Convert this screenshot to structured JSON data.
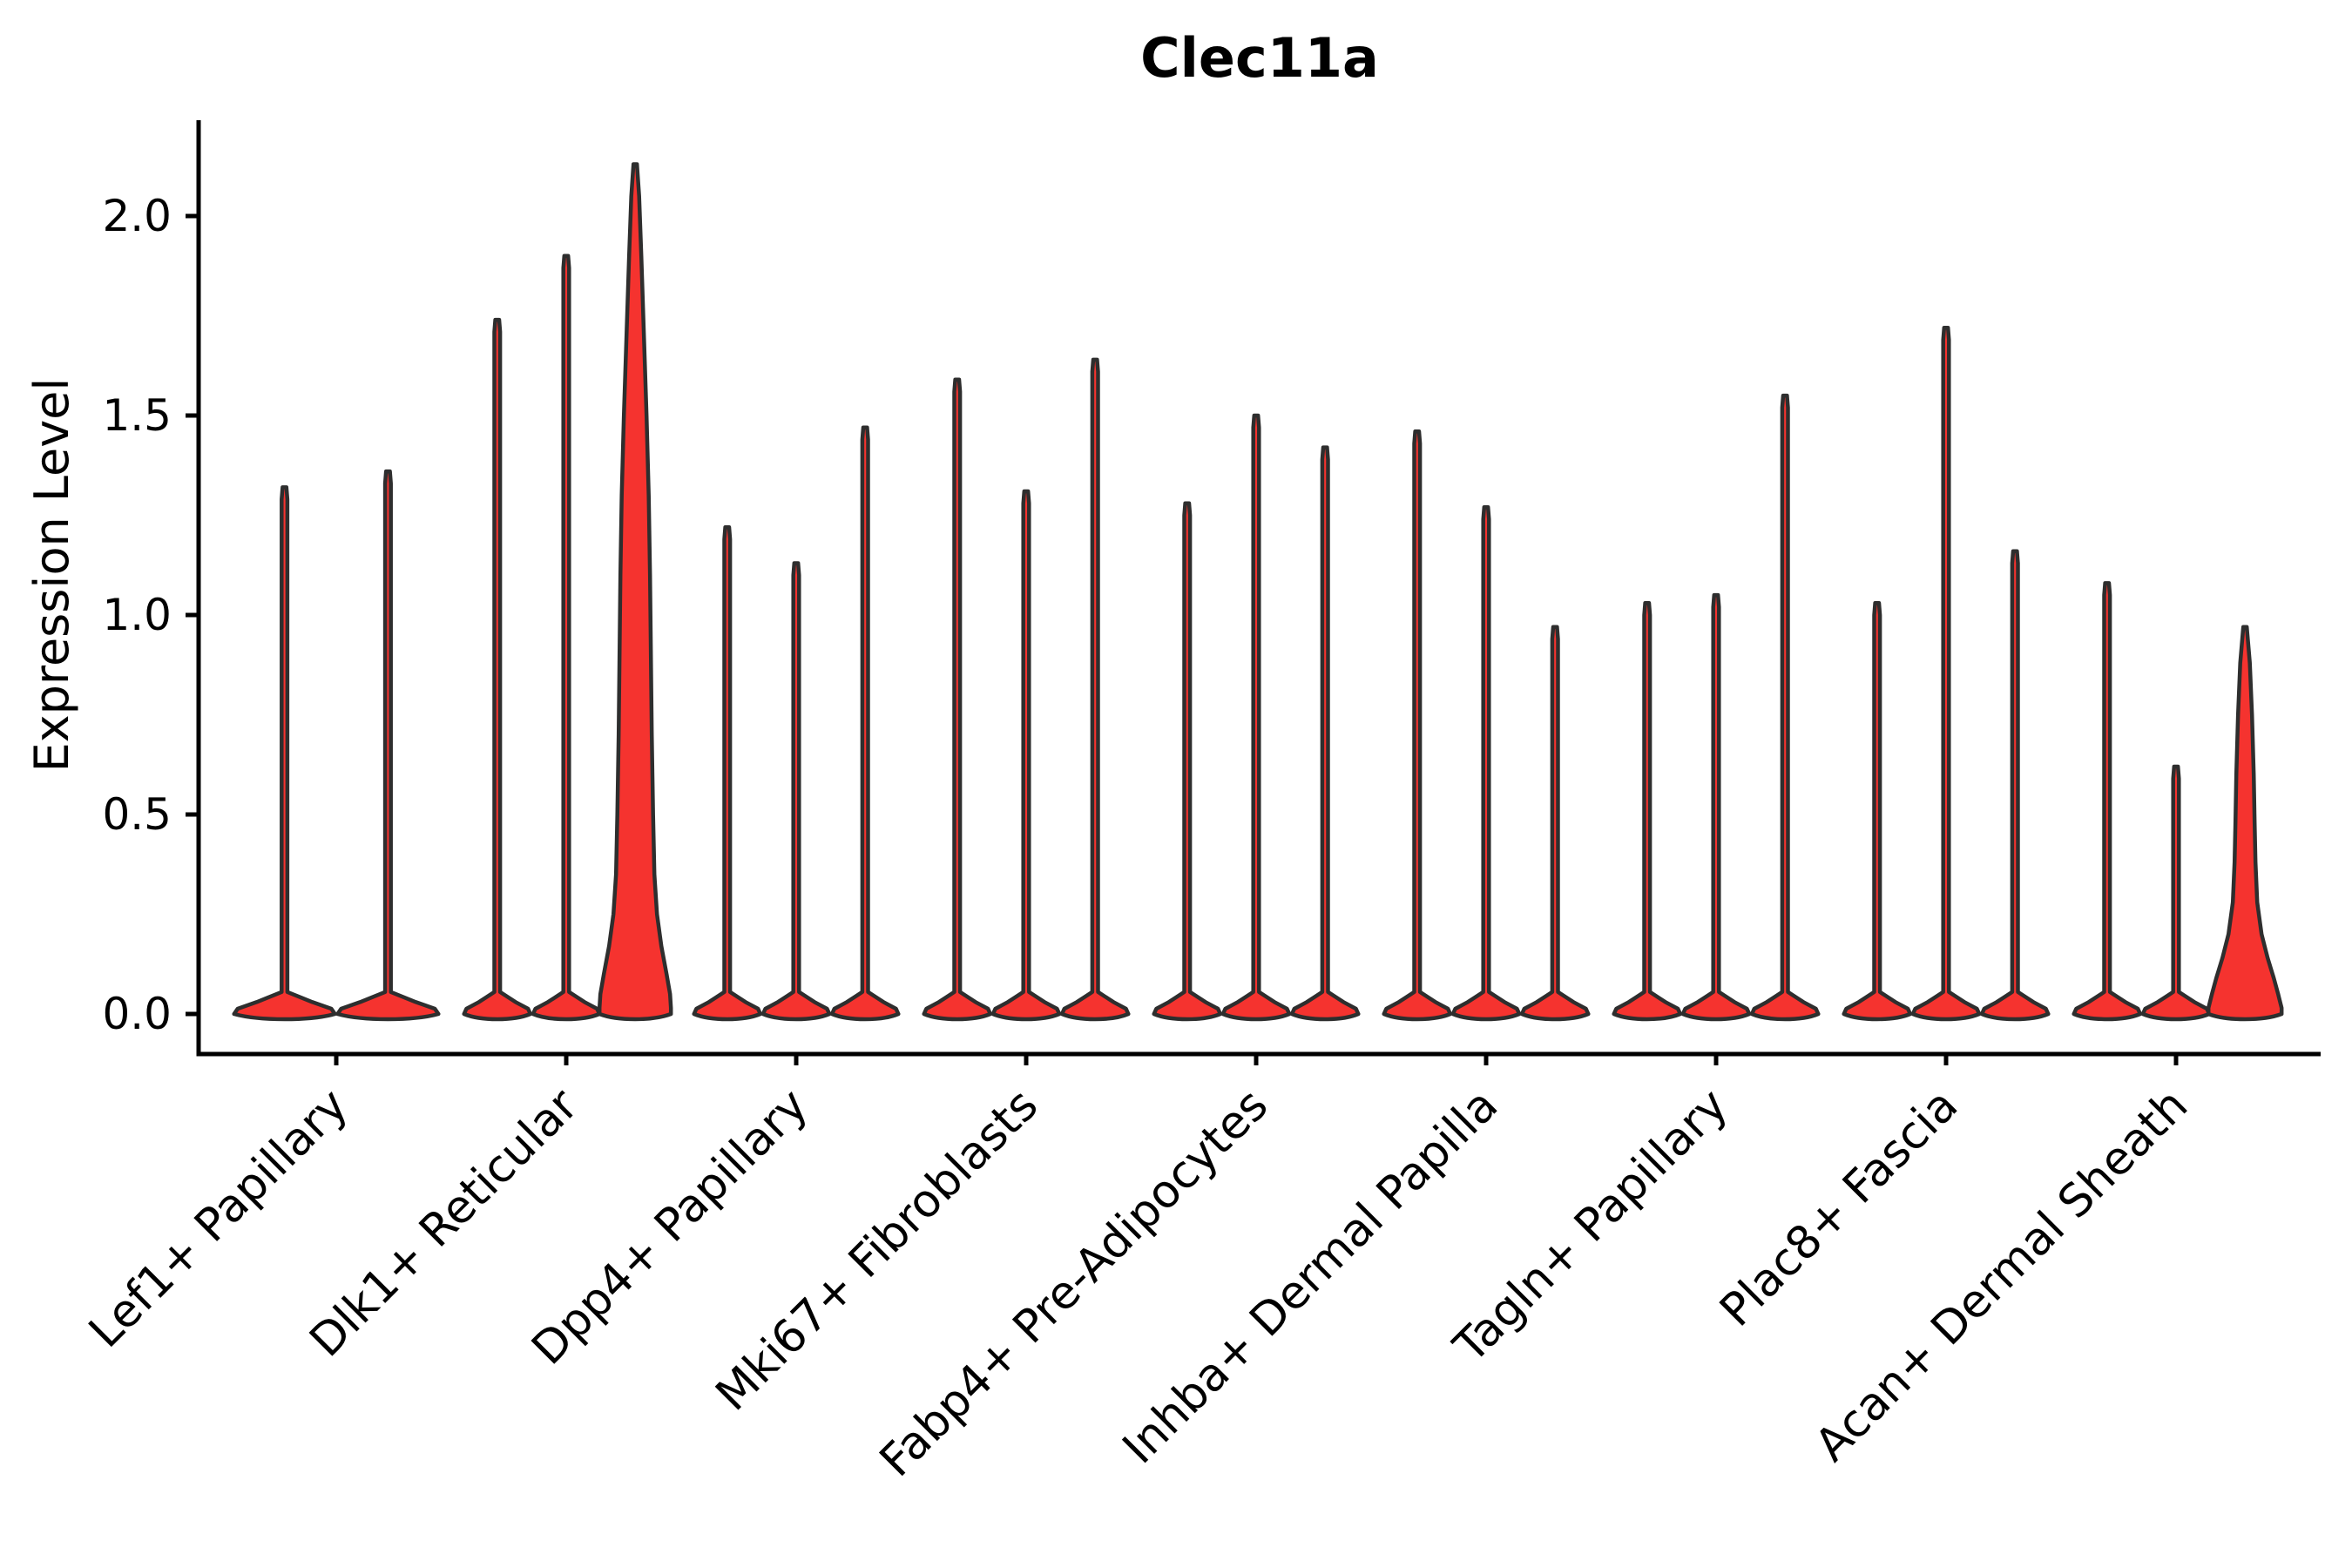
{
  "title": "Clec11a",
  "axes": {
    "ylabel": "Expression Level",
    "ytick_labels": [
      "2.0",
      "1.5",
      "1.0",
      "0.5",
      "0.0"
    ]
  },
  "colors": {
    "violin_fill": "#f5332f",
    "violin_stroke": "#2e2e2e",
    "axis": "#000000",
    "text": "#000000"
  },
  "chart_data": {
    "type": "violin",
    "title": "Clec11a",
    "xlabel": "",
    "ylabel": "Expression Level",
    "ylim": [
      -0.1,
      2.33
    ],
    "yticks": [
      2.0,
      1.5,
      1.0,
      0.5,
      0.0
    ],
    "grid": false,
    "legend": "none",
    "categories": [
      "Lef1+ Papillary",
      "Dlk1+ Reticular",
      "Dpp4+ Papillary",
      "Mki67+ Fibroblasts",
      "Fabp4+ Pre-Adipocytes",
      "Inhba+ Dermal Papilla",
      "Tagln+ Papillary",
      "Plac8+ Fascia",
      "Acan+ Dermal Sheath"
    ],
    "groups": [
      {
        "category": "Lef1+ Papillary",
        "violins": [
          {
            "max": 1.32
          },
          {
            "max": 1.36
          }
        ]
      },
      {
        "category": "Dlk1+ Reticular",
        "violins": [
          {
            "max": 1.74
          },
          {
            "max": 1.9
          },
          {
            "max": 2.13,
            "highlight": true,
            "profile": [
              [
                2.13,
                2
              ],
              [
                2.05,
                4.5
              ],
              [
                1.9,
                7
              ],
              [
                1.7,
                10
              ],
              [
                1.5,
                13
              ],
              [
                1.3,
                15.5
              ],
              [
                1.1,
                17
              ],
              [
                0.9,
                18
              ],
              [
                0.7,
                19
              ],
              [
                0.5,
                20.5
              ],
              [
                0.35,
                22
              ],
              [
                0.25,
                25
              ],
              [
                0.17,
                30
              ],
              [
                0.1,
                36
              ],
              [
                0.05,
                40
              ],
              [
                0.015,
                41
              ],
              [
                0,
                41
              ]
            ]
          }
        ]
      },
      {
        "category": "Dpp4+ Papillary",
        "violins": [
          {
            "max": 1.22
          },
          {
            "max": 1.13
          },
          {
            "max": 1.47
          }
        ]
      },
      {
        "category": "Mki67+ Fibroblasts",
        "violins": [
          {
            "max": 1.59
          },
          {
            "max": 1.31
          },
          {
            "max": 1.64
          }
        ]
      },
      {
        "category": "Fabp4+ Pre-Adipocytes",
        "violins": [
          {
            "max": 1.28
          },
          {
            "max": 1.5
          },
          {
            "max": 1.42
          }
        ]
      },
      {
        "category": "Inhba+ Dermal Papilla",
        "violins": [
          {
            "max": 1.46
          },
          {
            "max": 1.27
          },
          {
            "max": 0.97
          }
        ]
      },
      {
        "category": "Tagln+ Papillary",
        "violins": [
          {
            "max": 1.03
          },
          {
            "max": 1.05
          },
          {
            "max": 1.55
          }
        ]
      },
      {
        "category": "Plac8+ Fascia",
        "violins": [
          {
            "max": 1.03
          },
          {
            "max": 1.72
          },
          {
            "max": 1.16
          }
        ]
      },
      {
        "category": "Acan+ Dermal Sheath",
        "violins": [
          {
            "max": 1.08
          },
          {
            "max": 0.62
          },
          {
            "max": 0.97,
            "highlight": true,
            "profile": [
              [
                0.97,
                2
              ],
              [
                0.88,
                5.5
              ],
              [
                0.75,
                8
              ],
              [
                0.6,
                10
              ],
              [
                0.48,
                11
              ],
              [
                0.38,
                12
              ],
              [
                0.28,
                14
              ],
              [
                0.2,
                19
              ],
              [
                0.14,
                26
              ],
              [
                0.09,
                33
              ],
              [
                0.05,
                38
              ],
              [
                0.015,
                42
              ],
              [
                0,
                42
              ]
            ]
          }
        ]
      }
    ]
  }
}
